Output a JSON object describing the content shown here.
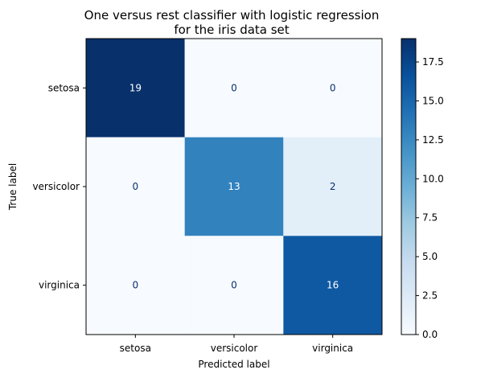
{
  "chart_data": {
    "type": "heatmap",
    "title": [
      "One versus rest classifier with logistic regression",
      "for the iris data set"
    ],
    "xlabel": "Predicted label",
    "ylabel": "True label",
    "x_categories": [
      "setosa",
      "versicolor",
      "virginica"
    ],
    "y_categories": [
      "setosa",
      "versicolor",
      "virginica"
    ],
    "values": [
      [
        19,
        0,
        0
      ],
      [
        0,
        13,
        2
      ],
      [
        0,
        0,
        16
      ]
    ],
    "colormap": "Blues",
    "color_range": [
      0,
      19
    ],
    "colorbar_ticks": [
      "0.0",
      "2.5",
      "5.0",
      "7.5",
      "10.0",
      "12.5",
      "15.0",
      "17.5"
    ],
    "colorbar_tick_values": [
      0,
      2.5,
      5,
      7.5,
      10,
      12.5,
      15,
      17.5
    ],
    "grid": false
  }
}
